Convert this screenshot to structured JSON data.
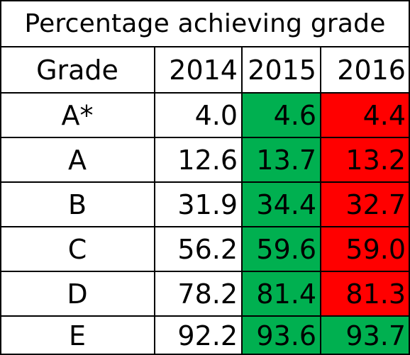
{
  "chart_data": {
    "type": "table",
    "title": "Percentage achieving grade",
    "columns": [
      "Grade",
      "2014",
      "2015",
      "2016"
    ],
    "rows": [
      {
        "grade": "A*",
        "v2014": "4.0",
        "v2015": "4.6",
        "v2016": "4.4"
      },
      {
        "grade": "A",
        "v2014": "12.6",
        "v2015": "13.7",
        "v2016": "13.2"
      },
      {
        "grade": "B",
        "v2014": "31.9",
        "v2015": "34.4",
        "v2016": "32.7"
      },
      {
        "grade": "C",
        "v2014": "56.2",
        "v2015": "59.6",
        "v2016": "59.0"
      },
      {
        "grade": "D",
        "v2014": "78.2",
        "v2015": "81.4",
        "v2016": "81.3"
      },
      {
        "grade": "E",
        "v2014": "92.2",
        "v2015": "93.6",
        "v2016": "93.7"
      }
    ],
    "cell_colors": {
      "2015": [
        "green",
        "green",
        "green",
        "green",
        "green",
        "green"
      ],
      "2016": [
        "red",
        "red",
        "red",
        "red",
        "red",
        "green"
      ]
    }
  },
  "colors": {
    "green": "#00b050",
    "red": "#ff0000",
    "text": "#000000",
    "border": "#000000",
    "background": "#ffffff"
  }
}
